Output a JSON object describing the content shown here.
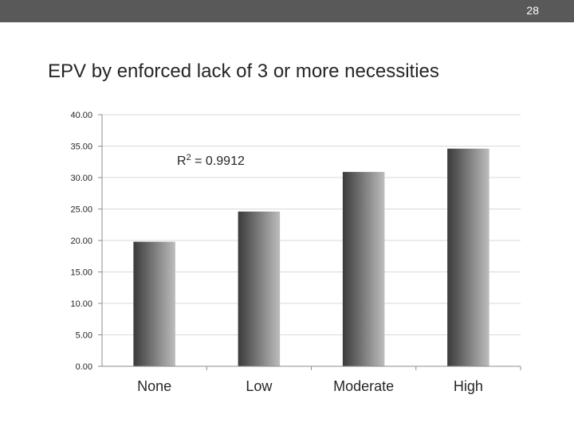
{
  "slide": {
    "number": "28",
    "title": "EPV by enforced lack of 3 or more necessities"
  },
  "colors": {
    "topbar": "#595959",
    "bar_dark": "#3a3a3a",
    "bar_light": "#bdbdbd",
    "gridline": "#d9d9d9",
    "axis": "#8c8c8c"
  },
  "chart_data": {
    "type": "bar",
    "categories": [
      "None",
      "Low",
      "Moderate",
      "High"
    ],
    "values": [
      19.8,
      24.6,
      30.9,
      34.6
    ],
    "ylim": [
      0,
      40
    ],
    "yticks": [
      "0.00",
      "5.00",
      "10.00",
      "15.00",
      "20.00",
      "25.00",
      "30.00",
      "35.00",
      "40.00"
    ],
    "ytick_values": [
      0,
      5,
      10,
      15,
      20,
      25,
      30,
      35,
      40
    ],
    "grid": true,
    "annotation": {
      "base": "R",
      "sup": "2",
      "rest": " = 0.9912"
    }
  }
}
